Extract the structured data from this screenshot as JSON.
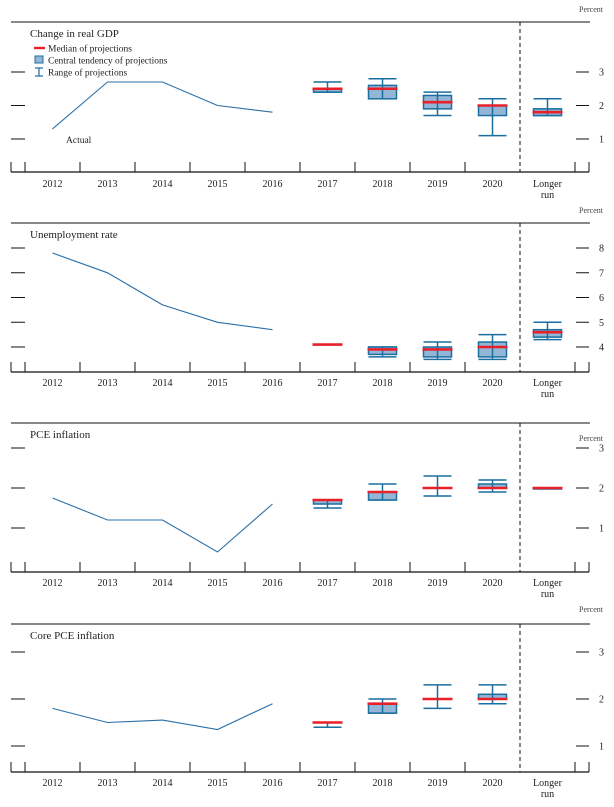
{
  "figure": {
    "unit_label": "Percent",
    "legend": {
      "median": "Median of projections",
      "central_tendency": "Central tendency of projections",
      "range": "Range of projections"
    },
    "colors": {
      "actual_line": "#2a6fa8",
      "median": "#e8202a",
      "box_fill": "#94b6d6",
      "box_stroke": "#1a6ea0",
      "axis": "#111111"
    },
    "actual_label": "Actual"
  },
  "chart_data": [
    {
      "type": "line",
      "title": "Change in real GDP",
      "ylabel": "Percent",
      "categories": [
        "2012",
        "2013",
        "2014",
        "2015",
        "2016",
        "2017",
        "2018",
        "2019",
        "2020",
        "Longer run"
      ],
      "yticks": [
        1,
        2,
        3
      ],
      "ylim": [
        0.0,
        4.0
      ],
      "actual": {
        "x": [
          "2012",
          "2013",
          "2014",
          "2015",
          "2016"
        ],
        "values": [
          1.3,
          2.7,
          2.7,
          2.0,
          1.8
        ]
      },
      "projections": [
        {
          "x": "2017",
          "median": 2.5,
          "ct": [
            2.4,
            2.5
          ],
          "range": [
            2.4,
            2.7
          ]
        },
        {
          "x": "2018",
          "median": 2.5,
          "ct": [
            2.2,
            2.6
          ],
          "range": [
            2.2,
            2.8
          ]
        },
        {
          "x": "2019",
          "median": 2.1,
          "ct": [
            1.9,
            2.3
          ],
          "range": [
            1.7,
            2.4
          ]
        },
        {
          "x": "2020",
          "median": 2.0,
          "ct": [
            1.7,
            2.0
          ],
          "range": [
            1.1,
            2.2
          ]
        },
        {
          "x": "Longer run",
          "median": 1.8,
          "ct": [
            1.7,
            1.9
          ],
          "range": [
            1.7,
            2.2
          ]
        }
      ],
      "has_legend": true,
      "legend_position": "top-left"
    },
    {
      "type": "line",
      "title": "Unemployment rate",
      "ylabel": "Percent",
      "categories": [
        "2012",
        "2013",
        "2014",
        "2015",
        "2016",
        "2017",
        "2018",
        "2019",
        "2020",
        "Longer run"
      ],
      "yticks": [
        4,
        5,
        6,
        7,
        8
      ],
      "ylim": [
        3.1,
        9.0
      ],
      "actual": {
        "x": [
          "2012",
          "2013",
          "2014",
          "2015",
          "2016"
        ],
        "values": [
          7.8,
          7.0,
          5.7,
          5.0,
          4.7
        ]
      },
      "projections": [
        {
          "x": "2017",
          "median": 4.1,
          "ct": null,
          "range": null
        },
        {
          "x": "2018",
          "median": 3.9,
          "ct": [
            3.7,
            4.0
          ],
          "range": [
            3.6,
            4.0
          ]
        },
        {
          "x": "2019",
          "median": 3.9,
          "ct": [
            3.6,
            4.0
          ],
          "range": [
            3.5,
            4.2
          ]
        },
        {
          "x": "2020",
          "median": 4.0,
          "ct": [
            3.6,
            4.2
          ],
          "range": [
            3.5,
            4.5
          ]
        },
        {
          "x": "Longer run",
          "median": 4.6,
          "ct": [
            4.4,
            4.7
          ],
          "range": [
            4.3,
            5.0
          ]
        }
      ]
    },
    {
      "type": "line",
      "title": "PCE inflation",
      "ylabel": "Percent",
      "categories": [
        "2012",
        "2013",
        "2014",
        "2015",
        "2016",
        "2017",
        "2018",
        "2019",
        "2020",
        "Longer run"
      ],
      "yticks": [
        1,
        2,
        3
      ],
      "ylim": [
        0.0,
        3.6
      ],
      "actual": {
        "x": [
          "2012",
          "2013",
          "2014",
          "2015",
          "2016"
        ],
        "values": [
          1.75,
          1.2,
          1.2,
          0.4,
          1.6
        ]
      },
      "projections": [
        {
          "x": "2017",
          "median": 1.7,
          "ct": [
            1.6,
            1.7
          ],
          "range": [
            1.5,
            1.7
          ]
        },
        {
          "x": "2018",
          "median": 1.9,
          "ct": [
            1.7,
            1.9
          ],
          "range": [
            1.7,
            2.1
          ]
        },
        {
          "x": "2019",
          "median": 2.0,
          "ct": null,
          "range": [
            1.8,
            2.3
          ]
        },
        {
          "x": "2020",
          "median": 2.0,
          "ct": [
            2.0,
            2.1
          ],
          "range": [
            1.9,
            2.2
          ]
        },
        {
          "x": "Longer run",
          "median": 2.0,
          "ct": [
            2.0,
            2.0
          ],
          "range": null
        }
      ]
    },
    {
      "type": "line",
      "title": "Core PCE inflation",
      "ylabel": "Percent",
      "categories": [
        "2012",
        "2013",
        "2014",
        "2015",
        "2016",
        "2017",
        "2018",
        "2019",
        "2020",
        "Longer run"
      ],
      "yticks": [
        1,
        2,
        3
      ],
      "ylim": [
        0.4,
        3.6
      ],
      "actual": {
        "x": [
          "2012",
          "2013",
          "2014",
          "2015",
          "2016"
        ],
        "values": [
          1.8,
          1.5,
          1.55,
          1.35,
          1.9
        ]
      },
      "projections": [
        {
          "x": "2017",
          "median": 1.5,
          "ct": null,
          "range": [
            1.4,
            1.5
          ]
        },
        {
          "x": "2018",
          "median": 1.9,
          "ct": [
            1.7,
            1.9
          ],
          "range": [
            1.7,
            2.0
          ]
        },
        {
          "x": "2019",
          "median": 2.0,
          "ct": null,
          "range": [
            1.8,
            2.3
          ]
        },
        {
          "x": "2020",
          "median": 2.0,
          "ct": [
            2.0,
            2.1
          ],
          "range": [
            1.9,
            2.3
          ]
        }
      ]
    }
  ]
}
